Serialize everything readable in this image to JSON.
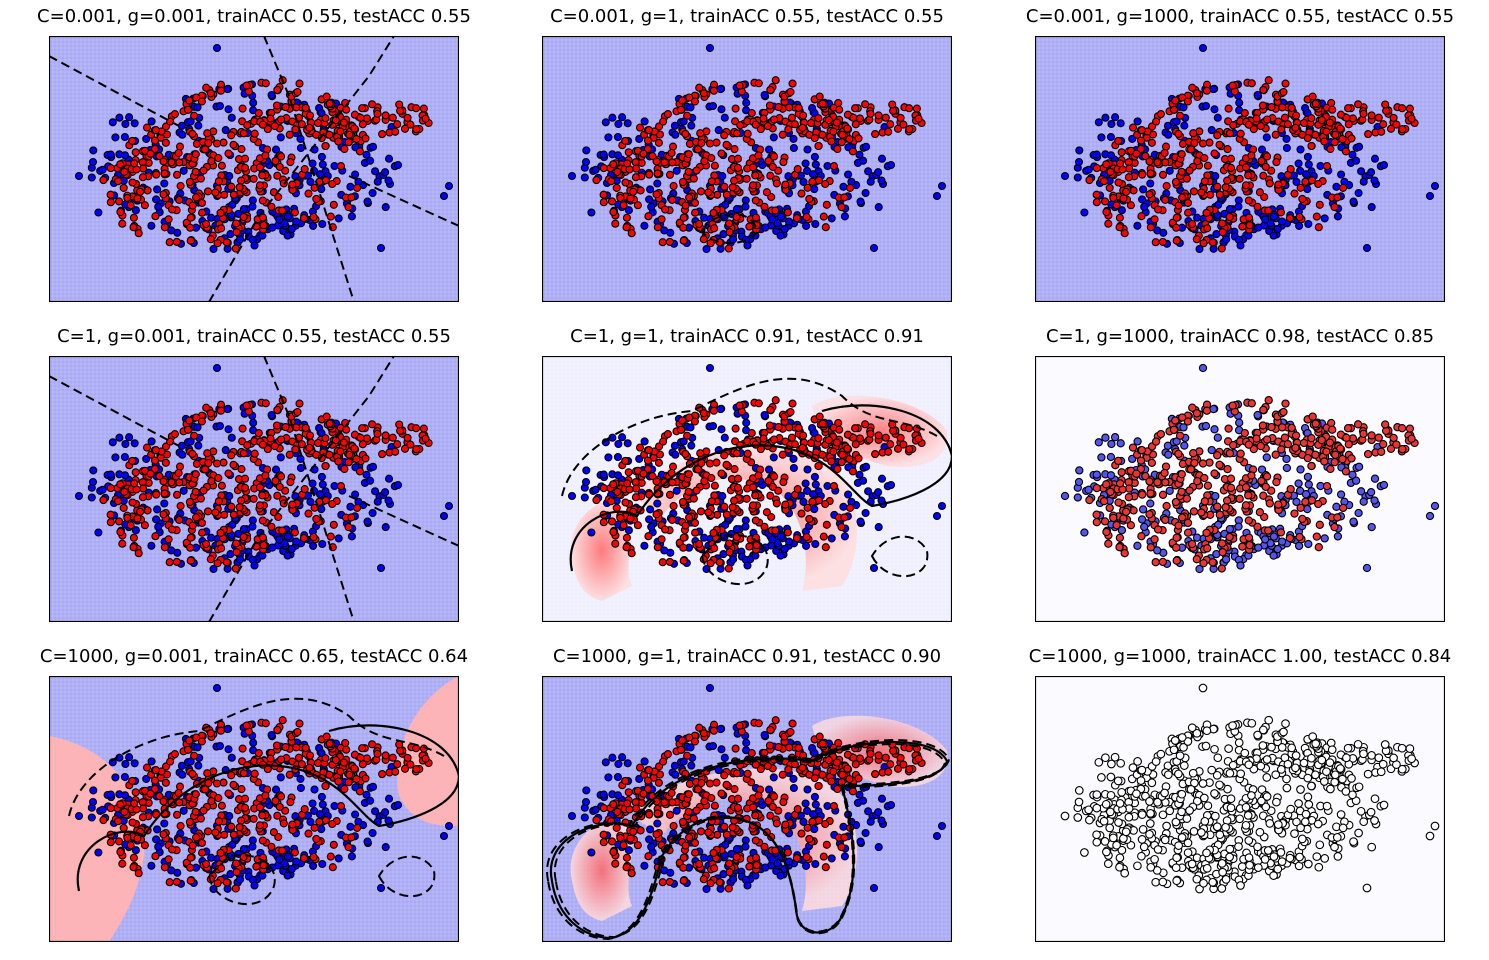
{
  "figure": {
    "colors": {
      "class_negative": "#0000ff",
      "class_positive": "#ff0000",
      "background_negative": "#a9a9f5",
      "background_positive": "#ffb3b3",
      "boundary": "#000000"
    }
  },
  "chart_data": [
    {
      "type": "scatter",
      "title": "C=0.001, g=0.001, trainACC 0.55, testACC 0.55",
      "C": "0.001",
      "gamma": "0.001",
      "train_acc": 0.55,
      "test_acc": 0.55,
      "background": "uniform-blue",
      "boundary": "dashed-lines",
      "axes": {
        "ticks": false
      }
    },
    {
      "type": "scatter",
      "title": "C=0.001, g=1, trainACC 0.55, testACC 0.55",
      "C": "0.001",
      "gamma": "1",
      "train_acc": 0.55,
      "test_acc": 0.55,
      "background": "uniform-blue",
      "boundary": "small-dashed-loop",
      "axes": {
        "ticks": false
      }
    },
    {
      "type": "scatter",
      "title": "C=0.001, g=1000, trainACC 0.55, testACC 0.55",
      "C": "0.001",
      "gamma": "1000",
      "train_acc": 0.55,
      "test_acc": 0.55,
      "background": "uniform-blue",
      "boundary": "none",
      "axes": {
        "ticks": false
      }
    },
    {
      "type": "scatter",
      "title": "C=1, g=0.001, trainACC 0.55, testACC 0.55",
      "C": "1",
      "gamma": "0.001",
      "train_acc": 0.55,
      "test_acc": 0.55,
      "background": "uniform-blue",
      "boundary": "dashed-lines",
      "axes": {
        "ticks": false
      }
    },
    {
      "type": "scatter",
      "title": "C=1, g=1, trainACC 0.91, testACC 0.91",
      "C": "1",
      "gamma": "1",
      "train_acc": 0.91,
      "test_acc": 0.91,
      "background": "red-moons-on-light-blue",
      "boundary": "curved-solid-and-dashed",
      "axes": {
        "ticks": false
      }
    },
    {
      "type": "scatter",
      "title": "C=1, g=1000, trainACC 0.98, testACC 0.85",
      "C": "1",
      "gamma": "1000",
      "train_acc": 0.98,
      "test_acc": 0.85,
      "background": "near-white",
      "boundary": "none",
      "axes": {
        "ticks": false
      }
    },
    {
      "type": "scatter",
      "title": "C=1000, g=0.001, trainACC 0.65, testACC 0.64",
      "C": "1000",
      "gamma": "0.001",
      "train_acc": 0.65,
      "test_acc": 0.64,
      "background": "blue-with-red-sides",
      "boundary": "curved-solid-and-dashed",
      "axes": {
        "ticks": false
      }
    },
    {
      "type": "scatter",
      "title": "C=1000, g=1, trainACC 0.91, testACC 0.90",
      "C": "1000",
      "gamma": "1",
      "train_acc": 0.91,
      "test_acc": 0.9,
      "background": "red-moons-on-blue",
      "boundary": "tight-solid-and-dashed",
      "axes": {
        "ticks": false
      }
    },
    {
      "type": "scatter",
      "title": "C=1000, g=1000, trainACC 1.00, testACC 0.84",
      "C": "1000",
      "gamma": "1000",
      "train_acc": 1.0,
      "test_acc": 0.84,
      "background": "near-white",
      "boundary": "none",
      "axes": {
        "ticks": false
      }
    }
  ]
}
